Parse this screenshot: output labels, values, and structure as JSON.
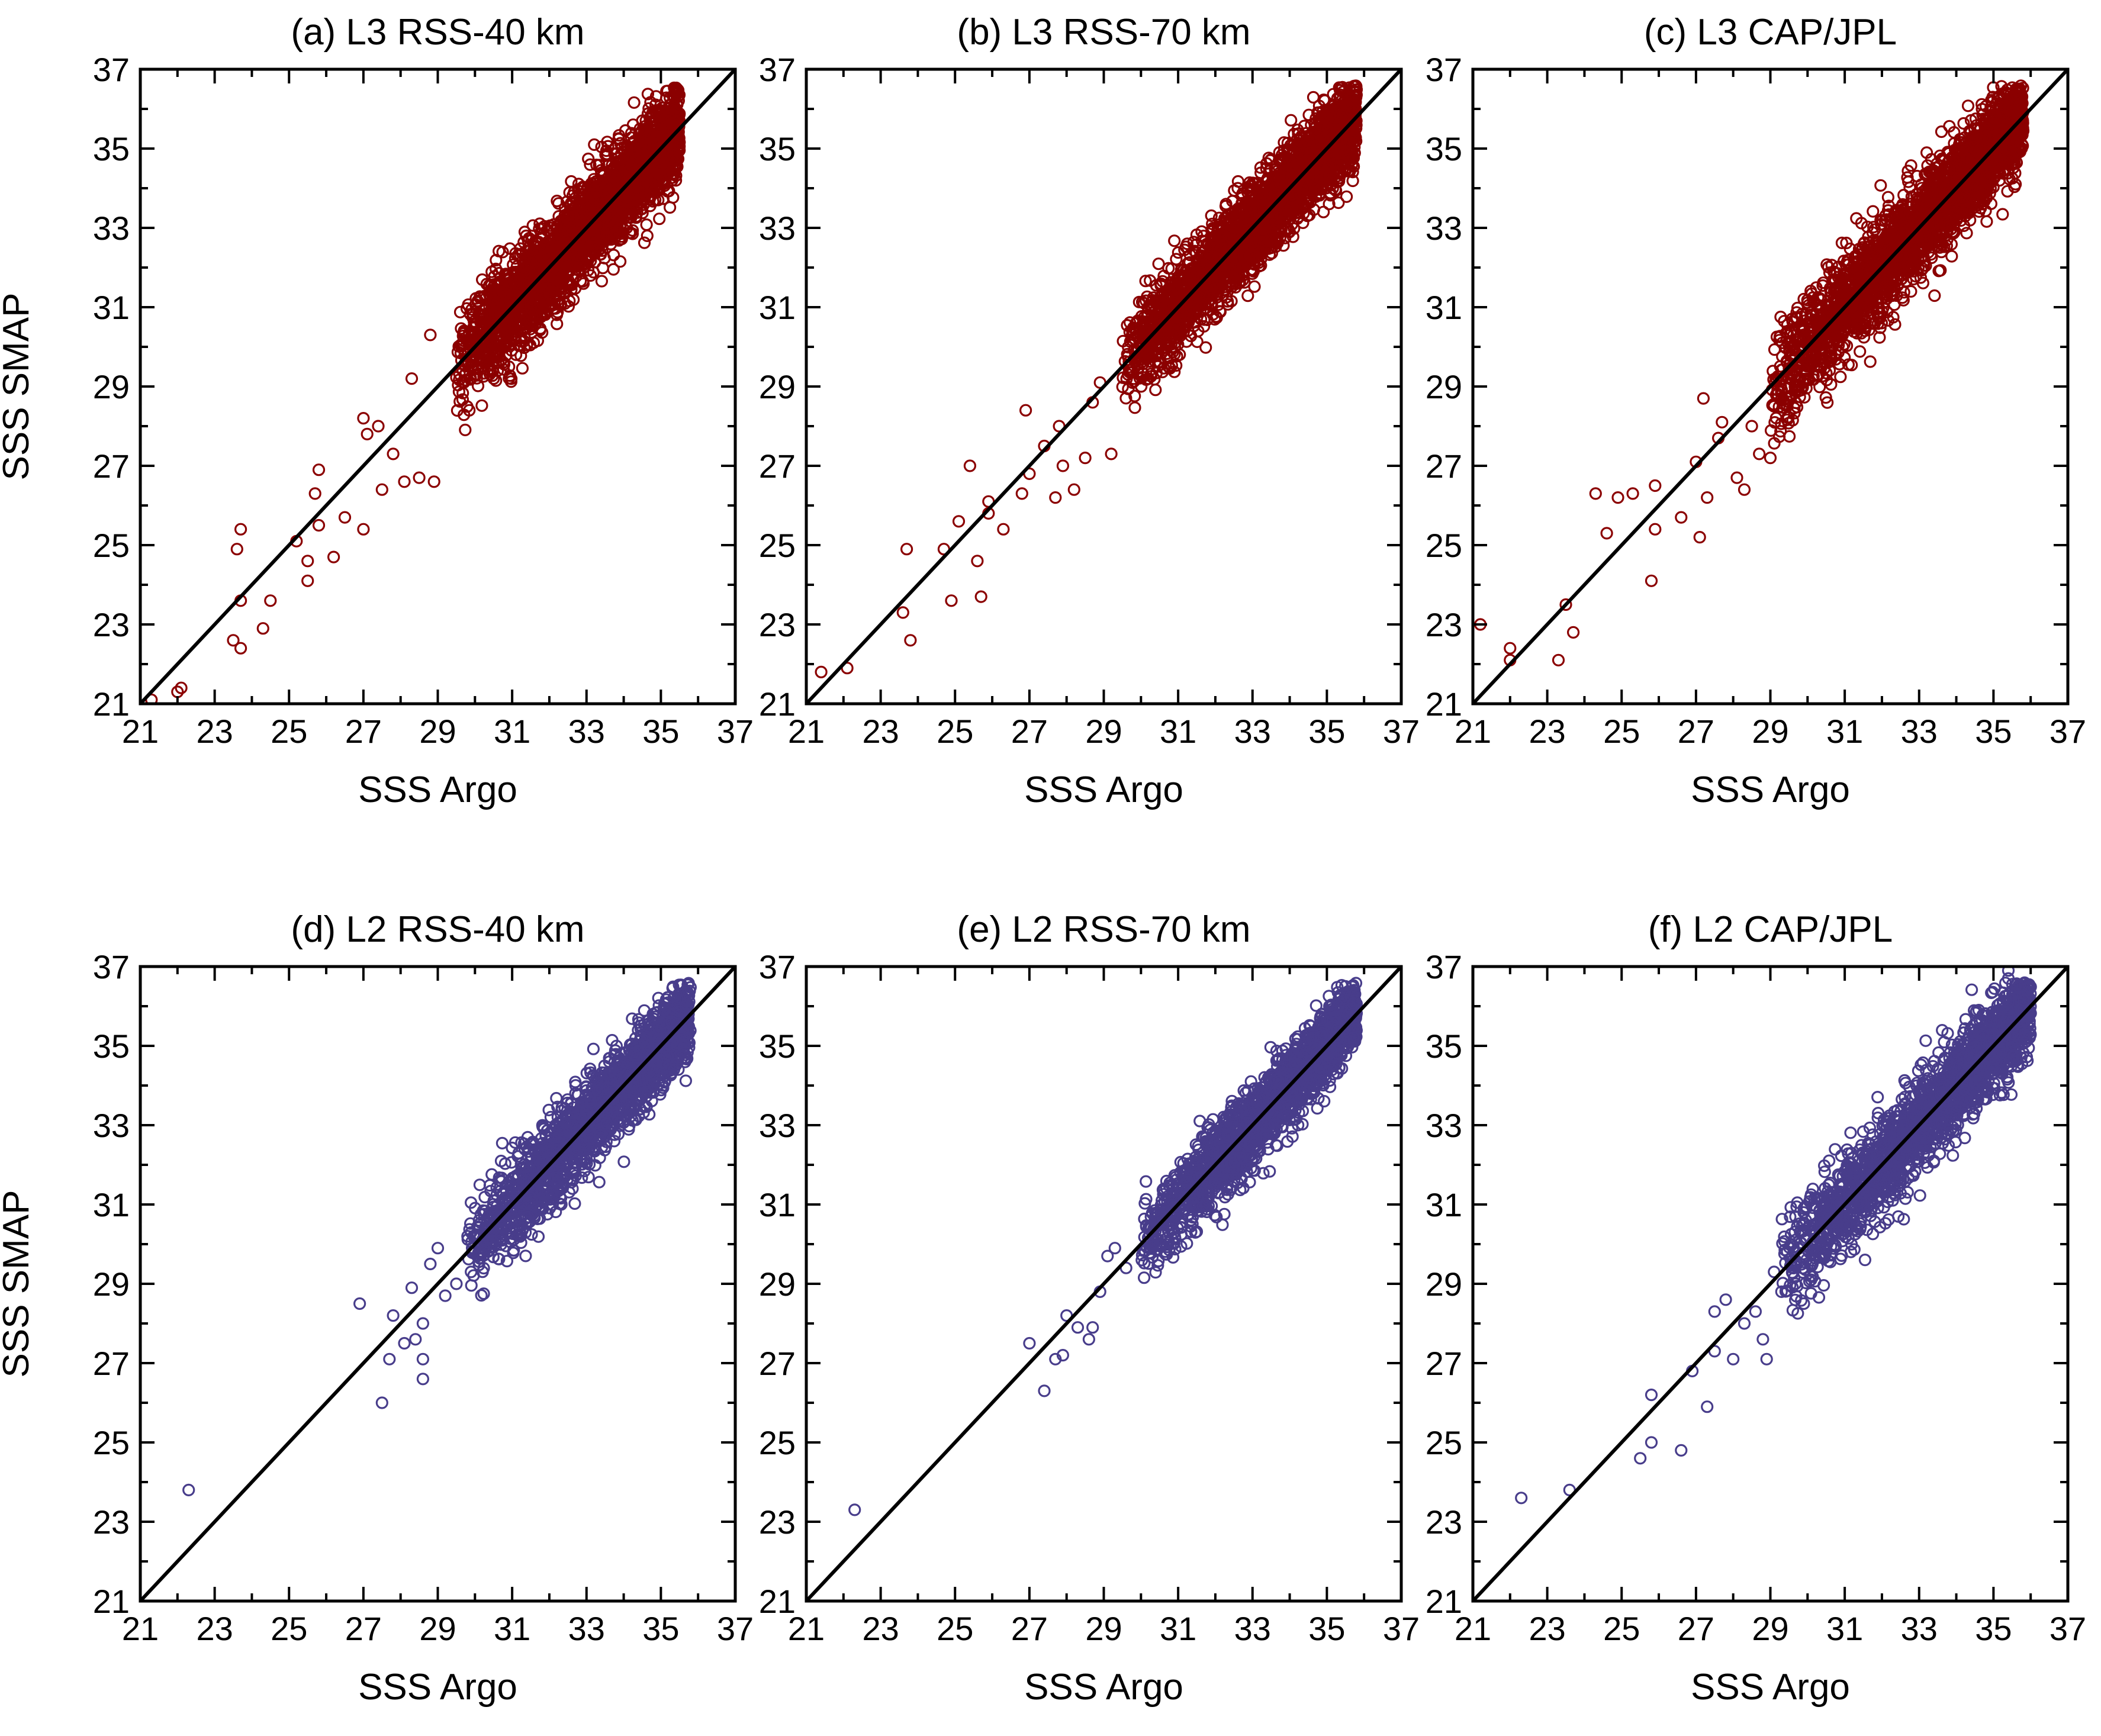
{
  "figure": {
    "colors": {
      "l3": "#8b0000",
      "l2": "#483d8b",
      "line": "#000000",
      "frame": "#000000"
    }
  },
  "chart_data": [
    {
      "type": "scatter",
      "title": "(a) L3 RSS-40 km",
      "xlabel": "SSS Argo",
      "ylabel": "SSS SMAP",
      "xlim": [
        21,
        37
      ],
      "ylim": [
        21,
        37
      ],
      "ticks": [
        "21",
        "23",
        "25",
        "27",
        "29",
        "31",
        "33",
        "35",
        "37"
      ],
      "reference_line": "1:1",
      "series_color": "#8b0000",
      "cloud": {
        "x_core": [
          29.5,
          35.5
        ],
        "spread": 1.0
      },
      "outliers": [
        [
          21.3,
          21.1
        ],
        [
          22.1,
          21.4
        ],
        [
          22.0,
          21.3
        ],
        [
          23.5,
          22.6
        ],
        [
          23.7,
          22.4
        ],
        [
          24.3,
          22.9
        ],
        [
          24.5,
          23.6
        ],
        [
          23.7,
          23.6
        ],
        [
          23.6,
          24.9
        ],
        [
          23.7,
          25.4
        ],
        [
          25.2,
          25.1
        ],
        [
          25.5,
          24.1
        ],
        [
          25.5,
          24.6
        ],
        [
          25.8,
          25.5
        ],
        [
          26.2,
          24.7
        ],
        [
          25.7,
          26.3
        ],
        [
          25.8,
          26.9
        ],
        [
          26.5,
          25.7
        ],
        [
          27.0,
          25.4
        ],
        [
          27.1,
          27.8
        ],
        [
          27.5,
          26.4
        ],
        [
          27.8,
          27.3
        ],
        [
          28.1,
          26.6
        ],
        [
          28.5,
          26.7
        ],
        [
          28.9,
          26.6
        ],
        [
          27.0,
          28.2
        ],
        [
          27.4,
          28.0
        ],
        [
          28.3,
          29.2
        ],
        [
          28.8,
          30.3
        ]
      ]
    },
    {
      "type": "scatter",
      "title": "(b) L3 RSS-70 km",
      "xlabel": "SSS Argo",
      "ylabel": "",
      "xlim": [
        21,
        37
      ],
      "ylim": [
        21,
        37
      ],
      "ticks": [
        "21",
        "23",
        "25",
        "27",
        "29",
        "31",
        "33",
        "35",
        "37"
      ],
      "reference_line": "1:1",
      "series_color": "#8b0000",
      "cloud": {
        "x_core": [
          29.5,
          35.8
        ],
        "spread": 0.9
      },
      "outliers": [
        [
          21.4,
          21.8
        ],
        [
          22.1,
          21.9
        ],
        [
          23.6,
          23.3
        ],
        [
          23.8,
          22.6
        ],
        [
          23.7,
          24.9
        ],
        [
          24.7,
          24.9
        ],
        [
          25.1,
          25.6
        ],
        [
          24.9,
          23.6
        ],
        [
          25.7,
          23.7
        ],
        [
          25.6,
          24.6
        ],
        [
          25.9,
          25.8
        ],
        [
          25.9,
          26.1
        ],
        [
          25.4,
          27.0
        ],
        [
          26.3,
          25.4
        ],
        [
          26.8,
          26.3
        ],
        [
          27.0,
          26.8
        ],
        [
          26.9,
          28.4
        ],
        [
          27.4,
          27.5
        ],
        [
          27.7,
          26.2
        ],
        [
          27.8,
          28.0
        ],
        [
          27.9,
          27.0
        ],
        [
          28.2,
          26.4
        ],
        [
          28.5,
          27.2
        ],
        [
          28.7,
          28.6
        ],
        [
          28.9,
          29.1
        ],
        [
          29.2,
          27.3
        ]
      ]
    },
    {
      "type": "scatter",
      "title": "(c) L3 CAP/JPL",
      "xlabel": "SSS Argo",
      "ylabel": "",
      "xlim": [
        21,
        37
      ],
      "ylim": [
        21,
        37
      ],
      "ticks": [
        "21",
        "23",
        "25",
        "27",
        "29",
        "31",
        "33",
        "35",
        "37"
      ],
      "reference_line": "1:1",
      "series_color": "#8b0000",
      "cloud": {
        "x_core": [
          29.0,
          35.8
        ],
        "spread": 1.0
      },
      "outliers": [
        [
          21.2,
          23.0
        ],
        [
          22.0,
          22.4
        ],
        [
          22.0,
          22.1
        ],
        [
          23.3,
          22.1
        ],
        [
          23.5,
          23.5
        ],
        [
          23.7,
          22.8
        ],
        [
          24.3,
          26.3
        ],
        [
          24.6,
          25.3
        ],
        [
          24.9,
          26.2
        ],
        [
          25.3,
          26.3
        ],
        [
          25.8,
          24.1
        ],
        [
          25.9,
          26.5
        ],
        [
          25.9,
          25.4
        ],
        [
          26.6,
          25.7
        ],
        [
          27.1,
          25.2
        ],
        [
          27.0,
          27.1
        ],
        [
          27.3,
          26.2
        ],
        [
          27.2,
          28.7
        ],
        [
          27.6,
          27.7
        ],
        [
          27.7,
          28.1
        ],
        [
          28.1,
          26.7
        ],
        [
          28.3,
          26.4
        ],
        [
          28.7,
          27.3
        ],
        [
          29.0,
          27.2
        ],
        [
          28.5,
          28.0
        ],
        [
          29.1,
          28.5
        ]
      ]
    },
    {
      "type": "scatter",
      "title": "(d) L2 RSS-40 km",
      "xlabel": "SSS Argo",
      "ylabel": "SSS SMAP",
      "xlim": [
        21,
        37
      ],
      "ylim": [
        21,
        37
      ],
      "ticks": [
        "21",
        "23",
        "25",
        "27",
        "29",
        "31",
        "33",
        "35",
        "37"
      ],
      "reference_line": "1:1",
      "series_color": "#483d8b",
      "cloud": {
        "x_core": [
          29.8,
          35.8
        ],
        "spread": 0.9
      },
      "outliers": [
        [
          22.3,
          23.8
        ],
        [
          26.9,
          28.5
        ],
        [
          27.5,
          26.0
        ],
        [
          27.7,
          27.1
        ],
        [
          27.8,
          28.2
        ],
        [
          28.1,
          27.5
        ],
        [
          28.3,
          28.9
        ],
        [
          28.4,
          27.6
        ],
        [
          28.6,
          26.6
        ],
        [
          28.6,
          27.1
        ],
        [
          28.6,
          28.0
        ],
        [
          28.8,
          29.5
        ],
        [
          29.0,
          29.9
        ],
        [
          29.2,
          28.7
        ],
        [
          29.5,
          29.0
        ],
        [
          29.8,
          30.2
        ]
      ]
    },
    {
      "type": "scatter",
      "title": "(e) L2 RSS-70 km",
      "xlabel": "SSS Argo",
      "ylabel": "",
      "xlim": [
        21,
        37
      ],
      "ylim": [
        21,
        37
      ],
      "ticks": [
        "21",
        "23",
        "25",
        "27",
        "29",
        "31",
        "33",
        "35",
        "37"
      ],
      "reference_line": "1:1",
      "series_color": "#483d8b",
      "cloud": {
        "x_core": [
          30.0,
          35.8
        ],
        "spread": 0.8
      },
      "outliers": [
        [
          22.3,
          23.3
        ],
        [
          27.0,
          27.5
        ],
        [
          27.4,
          26.3
        ],
        [
          27.7,
          27.1
        ],
        [
          27.9,
          27.2
        ],
        [
          28.0,
          28.2
        ],
        [
          28.3,
          27.9
        ],
        [
          28.6,
          27.6
        ],
        [
          28.7,
          27.9
        ],
        [
          28.9,
          28.8
        ],
        [
          29.1,
          29.7
        ],
        [
          29.3,
          29.9
        ],
        [
          29.6,
          29.4
        ]
      ]
    },
    {
      "type": "scatter",
      "title": "(f) L2 CAP/JPL",
      "xlabel": "SSS Argo",
      "ylabel": "",
      "xlim": [
        21,
        37
      ],
      "ylim": [
        21,
        37
      ],
      "ticks": [
        "21",
        "23",
        "25",
        "27",
        "29",
        "31",
        "33",
        "35",
        "37"
      ],
      "reference_line": "1:1",
      "series_color": "#483d8b",
      "cloud": {
        "x_core": [
          29.3,
          36.0
        ],
        "spread": 1.0
      },
      "outliers": [
        [
          22.3,
          23.6
        ],
        [
          23.6,
          23.8
        ],
        [
          25.5,
          24.6
        ],
        [
          25.8,
          25.0
        ],
        [
          25.8,
          26.2
        ],
        [
          26.6,
          24.8
        ],
        [
          26.9,
          26.8
        ],
        [
          27.3,
          25.9
        ],
        [
          27.5,
          27.3
        ],
        [
          27.5,
          28.3
        ],
        [
          27.8,
          28.6
        ],
        [
          28.0,
          27.1
        ],
        [
          28.3,
          28.0
        ],
        [
          28.6,
          28.3
        ],
        [
          28.8,
          27.6
        ],
        [
          28.9,
          27.1
        ],
        [
          29.1,
          29.3
        ],
        [
          29.3,
          28.8
        ],
        [
          29.6,
          29.4
        ],
        [
          29.9,
          29.7
        ],
        [
          29.9,
          28.5
        ],
        [
          35.4,
          36.7
        ],
        [
          35.4,
          36.9
        ]
      ]
    }
  ]
}
